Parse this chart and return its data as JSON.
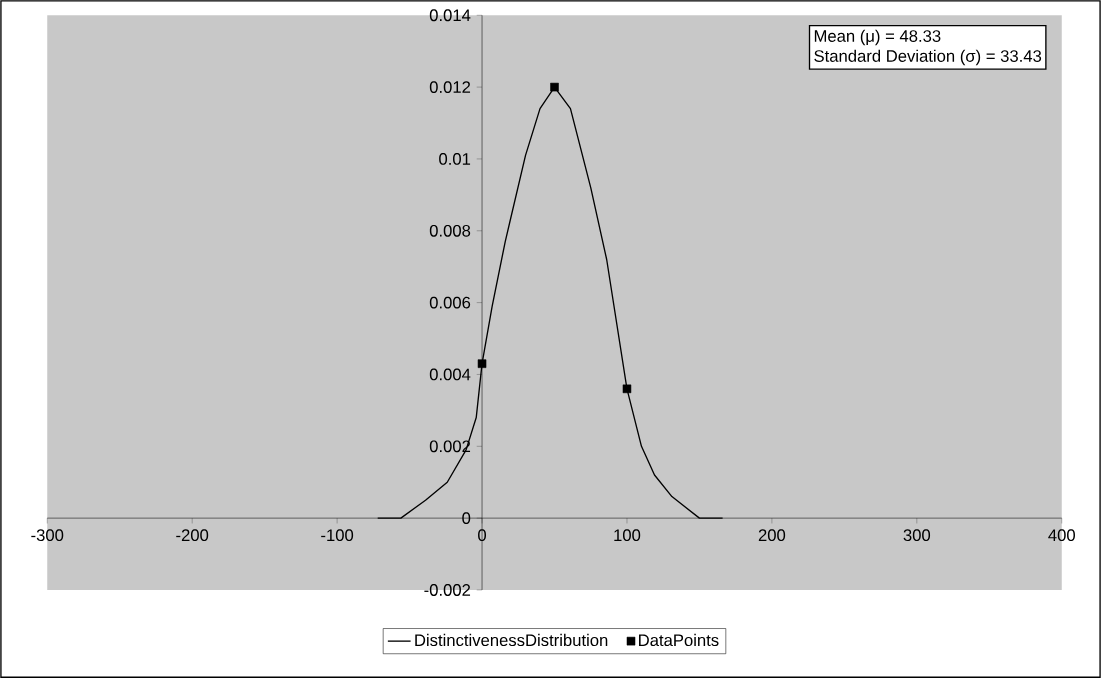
{
  "chart_data": {
    "type": "line",
    "xlim": [
      -300,
      400
    ],
    "ylim": [
      -0.002,
      0.014
    ],
    "xticks": [
      -300,
      -200,
      -100,
      0,
      100,
      200,
      300,
      400
    ],
    "yticks": [
      -0.002,
      0,
      0.002,
      0.004,
      0.006,
      0.008,
      0.01,
      0.012,
      0.014
    ],
    "grid": false,
    "legend": "bottom",
    "annotations": [
      "Mean (μ) = 48.33",
      "Standard Deviation (σ) = 33.43"
    ],
    "series": [
      {
        "name": "DistinctivenessDistribution",
        "color": "#000000",
        "line_style": "solid",
        "marker": "none",
        "x": [
          -72,
          -56,
          -39,
          -24,
          -11,
          -4,
          0,
          7,
          16,
          30,
          40,
          50,
          61,
          75,
          86,
          100,
          110,
          119,
          131,
          150,
          166
        ],
        "values": [
          0,
          0,
          0.0005,
          0.001,
          0.0019,
          0.0028,
          0.0043,
          0.0059,
          0.0077,
          0.0101,
          0.0114,
          0.012,
          0.0114,
          0.0092,
          0.0072,
          0.0036,
          0.002,
          0.0012,
          0.0006,
          0,
          0
        ]
      },
      {
        "name": "DataPoints",
        "type": "scatter",
        "color": "#000000",
        "marker": "square",
        "x": [
          0,
          50,
          100
        ],
        "values": [
          0.0043,
          0.012,
          0.0036
        ]
      }
    ]
  }
}
